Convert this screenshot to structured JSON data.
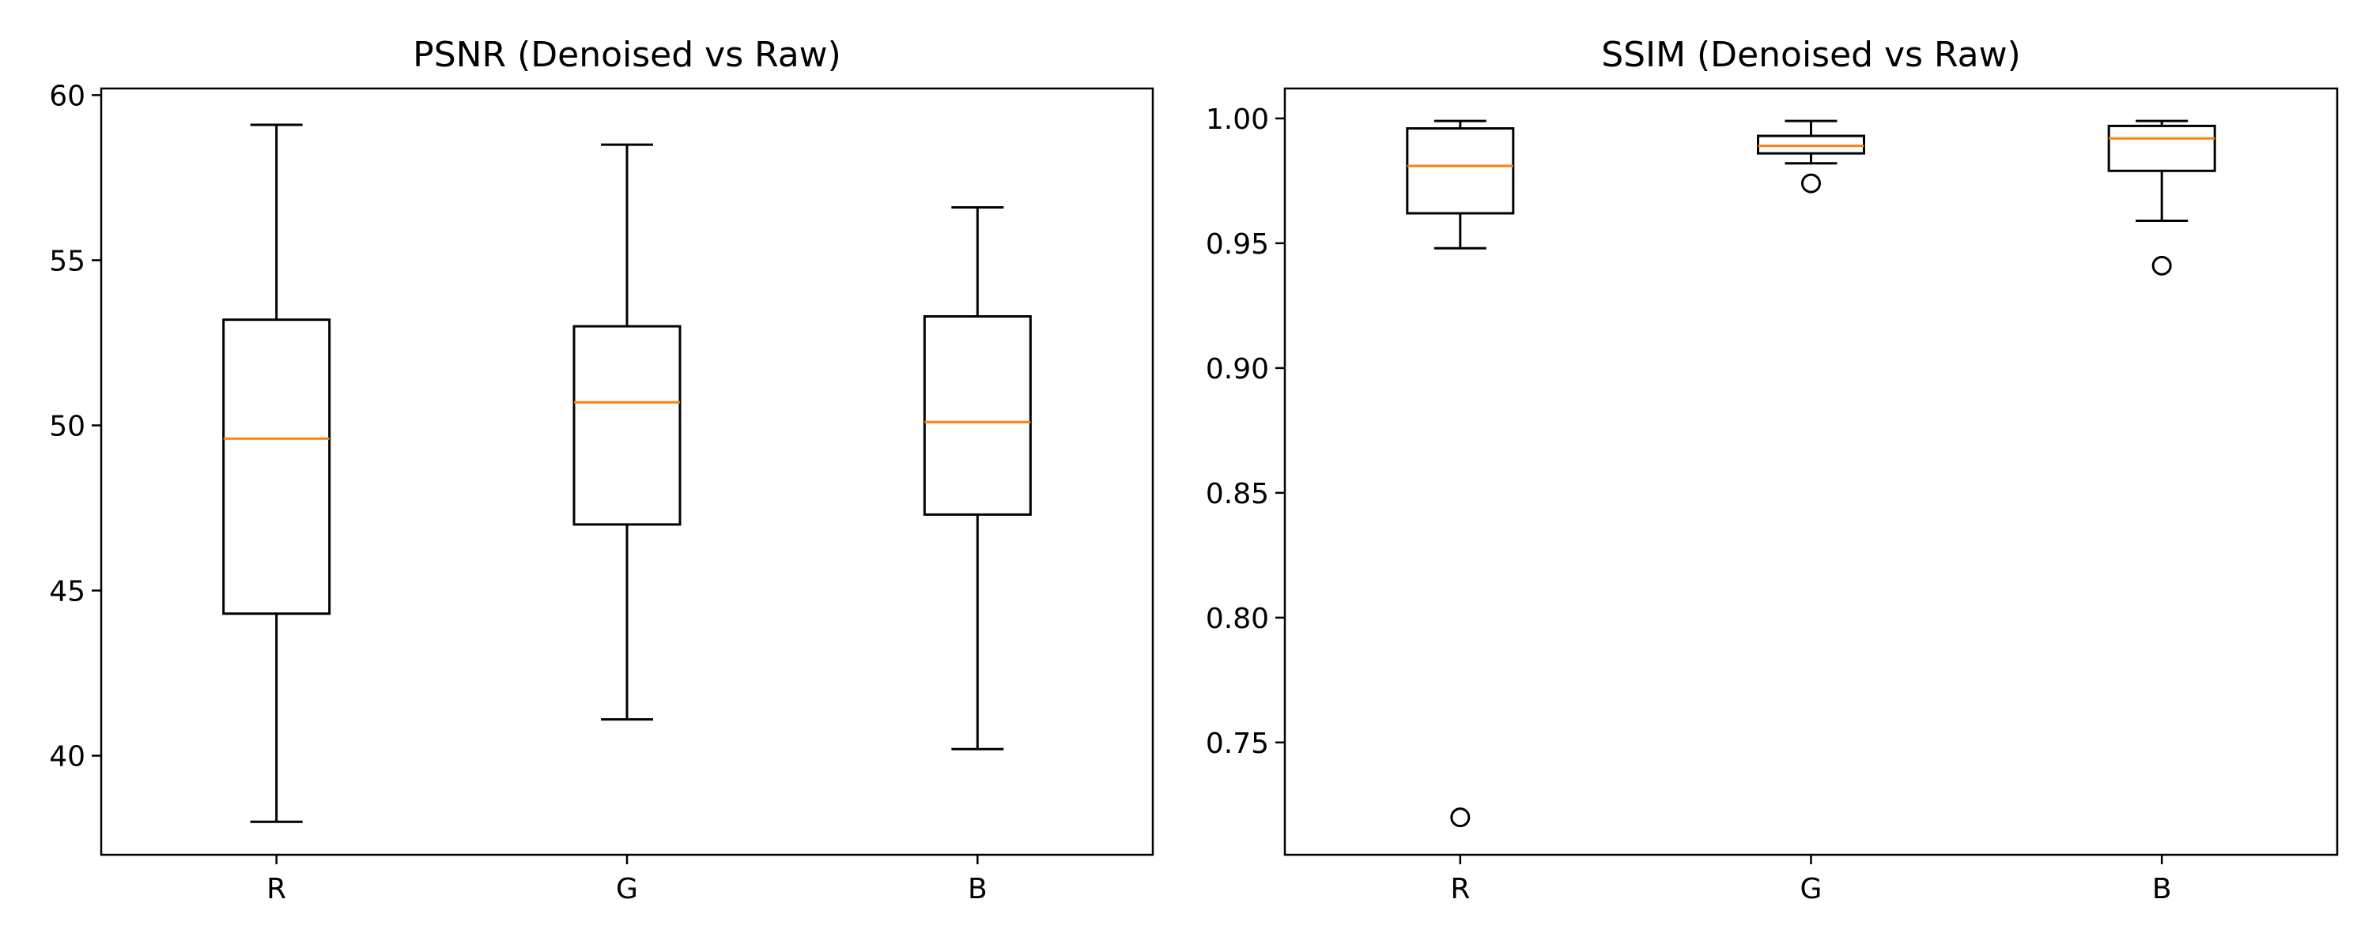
{
  "chart_data": [
    {
      "type": "box",
      "title": "PSNR (Denoised vs Raw)",
      "xlabel": "",
      "ylabel": "",
      "categories": [
        "R",
        "G",
        "B"
      ],
      "ylim": [
        37,
        60.2
      ],
      "yticks": [
        40,
        45,
        50,
        55,
        60
      ],
      "grid": false,
      "boxes": [
        {
          "label": "R",
          "whisker_low": 38.0,
          "q1": 44.3,
          "median": 49.6,
          "q3": 53.2,
          "whisker_high": 59.1,
          "fliers": []
        },
        {
          "label": "G",
          "whisker_low": 41.1,
          "q1": 47.0,
          "median": 50.7,
          "q3": 53.0,
          "whisker_high": 58.5,
          "fliers": []
        },
        {
          "label": "B",
          "whisker_low": 40.2,
          "q1": 47.3,
          "median": 50.1,
          "q3": 53.3,
          "whisker_high": 56.6,
          "fliers": []
        }
      ],
      "colors": {
        "box": "#000000",
        "median": "#ff7f0e"
      }
    },
    {
      "type": "box",
      "title": "SSIM (Denoised vs Raw)",
      "xlabel": "",
      "ylabel": "",
      "categories": [
        "R",
        "G",
        "B"
      ],
      "ylim": [
        0.705,
        1.012
      ],
      "yticks": [
        0.75,
        0.8,
        0.85,
        0.9,
        0.95,
        1.0
      ],
      "ytick_labels": [
        "0.75",
        "0.80",
        "0.85",
        "0.90",
        "0.95",
        "1.00"
      ],
      "grid": false,
      "boxes": [
        {
          "label": "R",
          "whisker_low": 0.948,
          "q1": 0.962,
          "median": 0.981,
          "q3": 0.996,
          "whisker_high": 0.999,
          "fliers": [
            0.72
          ]
        },
        {
          "label": "G",
          "whisker_low": 0.982,
          "q1": 0.986,
          "median": 0.989,
          "q3": 0.993,
          "whisker_high": 0.999,
          "fliers": [
            0.974
          ]
        },
        {
          "label": "B",
          "whisker_low": 0.959,
          "q1": 0.979,
          "median": 0.992,
          "q3": 0.997,
          "whisker_high": 0.999,
          "fliers": [
            0.941
          ]
        }
      ],
      "colors": {
        "box": "#000000",
        "median": "#ff7f0e"
      }
    }
  ]
}
